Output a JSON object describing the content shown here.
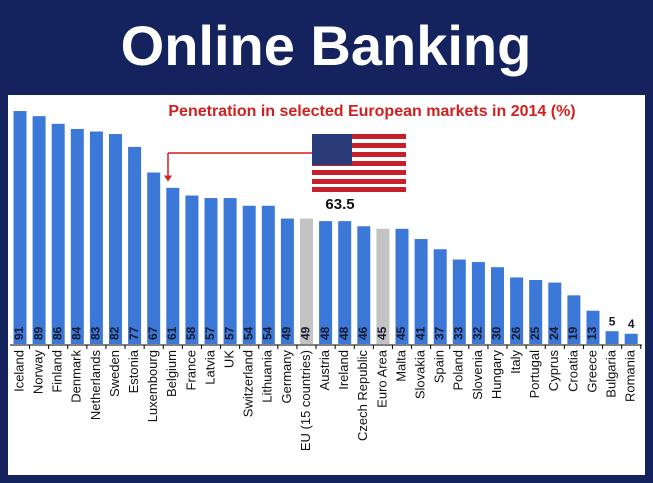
{
  "header": {
    "title": "Online Banking"
  },
  "chart_data": {
    "type": "bar",
    "subtitle": "Penetration in selected European markets in 2014 (%)",
    "categories": [
      "Iceland",
      "Norway",
      "Finland",
      "Denmark",
      "Netherlands",
      "Sweden",
      "Estonia",
      "Luxembourg",
      "Belgium",
      "France",
      "Latvia",
      "UK",
      "Switzerland",
      "Lithuania",
      "Germany",
      "EU (15 countries)",
      "Austria",
      "Ireland",
      "Czech Republic",
      "Euro Area",
      "Malta",
      "Slovakia",
      "Spain",
      "Poland",
      "Slovenia",
      "Hungary",
      "Italy",
      "Portugal",
      "Cyprus",
      "Croatia",
      "Greece",
      "Bulgaria",
      "Romania"
    ],
    "values": [
      91,
      89,
      86,
      84,
      83,
      82,
      77,
      67,
      61,
      58,
      57,
      57,
      54,
      54,
      49,
      49,
      48,
      48,
      46,
      45,
      45,
      41,
      37,
      33,
      32,
      30,
      26,
      25,
      24,
      19,
      13,
      5,
      4
    ],
    "color": "#3b78d8",
    "highlight_color": "#c3c3c3",
    "highlight": [
      "EU (15 countries)",
      "Euro Area"
    ],
    "annotation": 63.5
  }
}
